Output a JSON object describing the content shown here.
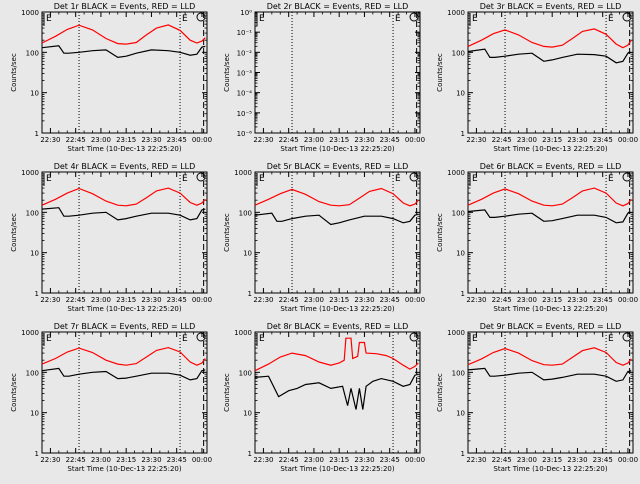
{
  "figure": {
    "background": "#e8e8e8"
  },
  "chart_data": [
    {
      "type": "line",
      "title": "Det 1r BLACK = Events, RED = LLD",
      "xlabel": "Start Time (10-Dec-13 22:25:20)",
      "ylabel": "Counts/sec",
      "x_ticks": [
        "22:30",
        "22:45",
        "23:00",
        "23:15",
        "23:30",
        "23:45",
        "00:00"
      ],
      "y_ticks": [
        "1",
        "10",
        "100",
        "1000"
      ],
      "yscale": "log",
      "ylim": [
        1,
        1000
      ],
      "xlim_minutes": [
        0,
        98
      ],
      "markers": {
        "dotted_lines_minutes": [
          22,
          82
        ],
        "dashed_line_minutes": 96,
        "letters": [
          "E",
          "E"
        ]
      },
      "series": [
        {
          "name": "Events",
          "color": "#000000",
          "x": [
            0,
            10,
            13,
            16,
            22,
            30,
            38,
            45,
            50,
            56,
            65,
            75,
            82,
            88,
            92,
            95,
            97
          ],
          "y": [
            130,
            145,
            95,
            95,
            100,
            110,
            115,
            75,
            80,
            95,
            115,
            110,
            100,
            85,
            90,
            135,
            140
          ]
        },
        {
          "name": "LLD",
          "color": "#ff0000",
          "x": [
            0,
            8,
            15,
            22,
            30,
            38,
            45,
            50,
            56,
            62,
            68,
            75,
            82,
            88,
            92,
            95,
            97
          ],
          "y": [
            170,
            250,
            370,
            470,
            360,
            220,
            165,
            160,
            175,
            270,
            400,
            480,
            350,
            200,
            170,
            190,
            230
          ]
        }
      ]
    },
    {
      "type": "line",
      "title": "Det 2r BLACK = Events, RED = LLD",
      "xlabel": "Start Time (10-Dec-13 22:25:20)",
      "ylabel": "Counts/sec",
      "x_ticks": [
        "22:30",
        "22:45",
        "23:00",
        "23:15",
        "23:30",
        "23:45",
        "00:00"
      ],
      "y_ticks": [
        "10⁻⁶",
        "10⁻⁵",
        "10⁻⁴",
        "10⁻³",
        "10⁻²",
        "10⁻¹",
        "10⁰"
      ],
      "yscale": "log",
      "ylim": [
        1e-06,
        1
      ],
      "xlim_minutes": [
        0,
        98
      ],
      "markers": {
        "dotted_lines_minutes": [
          22,
          82
        ],
        "dashed_line_minutes": 96,
        "letters": [
          "E",
          "E"
        ]
      },
      "series": []
    },
    {
      "type": "line",
      "title": "Det 3r BLACK = Events, RED = LLD",
      "xlabel": "Start Time (10-Dec-13 22:25:20)",
      "ylabel": "Counts/sec",
      "x_ticks": [
        "22:30",
        "22:45",
        "23:00",
        "23:15",
        "23:30",
        "23:45",
        "00:00"
      ],
      "y_ticks": [
        "1",
        "10",
        "100",
        "1000"
      ],
      "yscale": "log",
      "ylim": [
        1,
        1000
      ],
      "xlim_minutes": [
        0,
        98
      ],
      "markers": {
        "dotted_lines_minutes": [
          22,
          82
        ],
        "dashed_line_minutes": 96,
        "letters": [
          "E",
          "E"
        ]
      },
      "series": [
        {
          "name": "Events",
          "color": "#000000",
          "x": [
            0,
            10,
            13,
            16,
            22,
            30,
            38,
            45,
            50,
            56,
            65,
            75,
            82,
            88,
            92,
            95,
            97
          ],
          "y": [
            105,
            120,
            75,
            75,
            80,
            90,
            95,
            60,
            65,
            75,
            90,
            88,
            80,
            55,
            60,
            95,
            100
          ]
        },
        {
          "name": "LLD",
          "color": "#ff0000",
          "x": [
            0,
            8,
            15,
            22,
            30,
            38,
            45,
            50,
            56,
            62,
            68,
            75,
            82,
            88,
            92,
            95,
            97
          ],
          "y": [
            140,
            200,
            290,
            360,
            270,
            175,
            140,
            135,
            150,
            220,
            330,
            380,
            280,
            160,
            130,
            150,
            200
          ]
        }
      ]
    },
    {
      "type": "line",
      "title": "Det 4r BLACK = Events, RED = LLD",
      "xlabel": "Start Time (10-Dec-13 22:25:20)",
      "ylabel": "Counts/sec",
      "x_ticks": [
        "22:30",
        "22:45",
        "23:00",
        "23:15",
        "23:30",
        "23:45",
        "00:00"
      ],
      "y_ticks": [
        "1",
        "10",
        "100",
        "1000"
      ],
      "yscale": "log",
      "ylim": [
        1,
        1000
      ],
      "xlim_minutes": [
        0,
        98
      ],
      "markers": {
        "dotted_lines_minutes": [
          22,
          82
        ],
        "dashed_line_minutes": 96,
        "letters": [
          "E",
          "E"
        ]
      },
      "series": [
        {
          "name": "Events",
          "color": "#000000",
          "x": [
            0,
            10,
            13,
            16,
            22,
            30,
            38,
            45,
            50,
            56,
            65,
            75,
            82,
            88,
            92,
            95,
            97
          ],
          "y": [
            120,
            130,
            80,
            80,
            85,
            95,
            100,
            65,
            70,
            80,
            95,
            95,
            85,
            65,
            70,
            115,
            120
          ]
        },
        {
          "name": "LLD",
          "color": "#ff0000",
          "x": [
            0,
            8,
            15,
            22,
            30,
            38,
            45,
            50,
            56,
            62,
            68,
            75,
            82,
            88,
            92,
            95,
            97
          ],
          "y": [
            150,
            210,
            300,
            390,
            290,
            190,
            150,
            145,
            160,
            230,
            340,
            400,
            300,
            175,
            150,
            170,
            210
          ]
        }
      ]
    },
    {
      "type": "line",
      "title": "Det 5r BLACK = Events, RED = LLD",
      "xlabel": "Start Time (10-Dec-13 22:25:20)",
      "ylabel": "Counts/sec",
      "x_ticks": [
        "22:30",
        "22:45",
        "23:00",
        "23:15",
        "23:30",
        "23:45",
        "00:00"
      ],
      "y_ticks": [
        "1",
        "10",
        "100",
        "1000"
      ],
      "yscale": "log",
      "ylim": [
        1,
        1000
      ],
      "xlim_minutes": [
        0,
        98
      ],
      "markers": {
        "dotted_lines_minutes": [
          22,
          82
        ],
        "dashed_line_minutes": 96,
        "letters": [
          "E",
          "E"
        ]
      },
      "series": [
        {
          "name": "Events",
          "color": "#000000",
          "x": [
            0,
            10,
            13,
            16,
            22,
            30,
            38,
            45,
            50,
            56,
            65,
            75,
            82,
            88,
            92,
            95,
            97
          ],
          "y": [
            85,
            95,
            60,
            60,
            70,
            80,
            85,
            50,
            55,
            65,
            80,
            80,
            70,
            55,
            60,
            85,
            90
          ]
        },
        {
          "name": "LLD",
          "color": "#ff0000",
          "x": [
            0,
            8,
            15,
            22,
            30,
            38,
            45,
            50,
            56,
            62,
            68,
            75,
            82,
            88,
            92,
            95,
            97
          ],
          "y": [
            150,
            210,
            290,
            370,
            280,
            185,
            150,
            145,
            155,
            225,
            330,
            390,
            290,
            170,
            145,
            160,
            200
          ]
        }
      ]
    },
    {
      "type": "line",
      "title": "Det 6r BLACK = Events, RED = LLD",
      "xlabel": "Start Time (10-Dec-13 22:25:20)",
      "ylabel": "Counts/sec",
      "x_ticks": [
        "22:30",
        "22:45",
        "23:00",
        "23:15",
        "23:30",
        "23:45",
        "00:00"
      ],
      "y_ticks": [
        "1",
        "10",
        "100",
        "1000"
      ],
      "yscale": "log",
      "ylim": [
        1,
        1000
      ],
      "xlim_minutes": [
        0,
        98
      ],
      "markers": {
        "dotted_lines_minutes": [
          22,
          82
        ],
        "dashed_line_minutes": 96,
        "letters": [
          "E",
          "E"
        ]
      },
      "series": [
        {
          "name": "Events",
          "color": "#000000",
          "x": [
            0,
            10,
            13,
            16,
            22,
            30,
            38,
            45,
            50,
            56,
            65,
            75,
            82,
            88,
            92,
            95,
            97
          ],
          "y": [
            105,
            115,
            75,
            75,
            80,
            90,
            95,
            60,
            62,
            70,
            85,
            85,
            75,
            55,
            58,
            95,
            100
          ]
        },
        {
          "name": "LLD",
          "color": "#ff0000",
          "x": [
            0,
            8,
            15,
            22,
            30,
            38,
            45,
            50,
            56,
            62,
            68,
            75,
            82,
            88,
            92,
            95,
            97
          ],
          "y": [
            150,
            210,
            300,
            380,
            290,
            190,
            150,
            145,
            160,
            230,
            340,
            400,
            300,
            170,
            145,
            165,
            210
          ]
        }
      ]
    },
    {
      "type": "line",
      "title": "Det 7r BLACK = Events, RED = LLD",
      "xlabel": "Start Time (10-Dec-13 22:25:20)",
      "ylabel": "Counts/sec",
      "x_ticks": [
        "22:30",
        "22:45",
        "23:00",
        "23:15",
        "23:30",
        "23:45",
        "00:00"
      ],
      "y_ticks": [
        "1",
        "10",
        "100",
        "1000"
      ],
      "yscale": "log",
      "ylim": [
        1,
        1000
      ],
      "xlim_minutes": [
        0,
        98
      ],
      "markers": {
        "dotted_lines_minutes": [
          22,
          82
        ],
        "dashed_line_minutes": 96,
        "letters": [
          "E",
          "E"
        ]
      },
      "series": [
        {
          "name": "Events",
          "color": "#000000",
          "x": [
            0,
            10,
            13,
            16,
            22,
            30,
            38,
            45,
            50,
            56,
            65,
            75,
            82,
            88,
            92,
            95,
            97
          ],
          "y": [
            110,
            125,
            80,
            80,
            90,
            100,
            105,
            70,
            72,
            80,
            95,
            95,
            85,
            65,
            70,
            110,
            115
          ]
        },
        {
          "name": "LLD",
          "color": "#ff0000",
          "x": [
            0,
            8,
            15,
            22,
            30,
            38,
            45,
            50,
            56,
            62,
            68,
            75,
            82,
            88,
            92,
            95,
            97
          ],
          "y": [
            160,
            220,
            320,
            400,
            310,
            200,
            160,
            150,
            165,
            240,
            350,
            410,
            320,
            180,
            150,
            170,
            220
          ]
        }
      ]
    },
    {
      "type": "line",
      "title": "Det 8r BLACK = Events, RED = LLD",
      "xlabel": "Start Time (10-Dec-13 22:25:20)",
      "ylabel": "Counts/sec",
      "x_ticks": [
        "22:30",
        "22:45",
        "23:00",
        "23:15",
        "23:30",
        "23:45",
        "00:00"
      ],
      "y_ticks": [
        "1",
        "10",
        "100",
        "1000"
      ],
      "yscale": "log",
      "ylim": [
        1,
        1000
      ],
      "xlim_minutes": [
        0,
        98
      ],
      "markers": {
        "dotted_lines_minutes": [
          82
        ],
        "dashed_line_minutes": 96,
        "letters": [
          "E"
        ]
      },
      "series": [
        {
          "name": "Events",
          "color": "#000000",
          "x": [
            0,
            8,
            14,
            20,
            25,
            30,
            38,
            45,
            52,
            55,
            57,
            60,
            62,
            64,
            66,
            70,
            75,
            82,
            88,
            92,
            95,
            97
          ],
          "y": [
            75,
            80,
            25,
            35,
            40,
            50,
            55,
            40,
            45,
            15,
            40,
            12,
            40,
            12,
            45,
            60,
            70,
            60,
            45,
            50,
            85,
            90
          ]
        },
        {
          "name": "LLD",
          "color": "#ff0000",
          "x": [
            0,
            8,
            15,
            22,
            30,
            38,
            45,
            50,
            53,
            54,
            57,
            58,
            61,
            62,
            65,
            66,
            72,
            78,
            82,
            88,
            92,
            95,
            97
          ],
          "y": [
            110,
            160,
            240,
            300,
            260,
            180,
            150,
            170,
            200,
            700,
            700,
            220,
            250,
            550,
            550,
            300,
            290,
            260,
            220,
            150,
            120,
            140,
            170
          ]
        }
      ]
    },
    {
      "type": "line",
      "title": "Det 9r BLACK = Events, RED = LLD",
      "xlabel": "Start Time (10-Dec-13 22:25:20)",
      "ylabel": "Counts/sec",
      "x_ticks": [
        "22:30",
        "22:45",
        "23:00",
        "23:15",
        "23:30",
        "23:45",
        "00:00"
      ],
      "y_ticks": [
        "1",
        "10",
        "100",
        "1000"
      ],
      "yscale": "log",
      "ylim": [
        1,
        1000
      ],
      "xlim_minutes": [
        0,
        98
      ],
      "markers": {
        "dotted_lines_minutes": [
          22,
          82
        ],
        "dashed_line_minutes": 96,
        "letters": [
          "E",
          "E"
        ]
      },
      "series": [
        {
          "name": "Events",
          "color": "#000000",
          "x": [
            0,
            10,
            13,
            16,
            22,
            30,
            38,
            45,
            50,
            56,
            65,
            75,
            82,
            88,
            92,
            95,
            97
          ],
          "y": [
            115,
            125,
            80,
            80,
            85,
            95,
            100,
            65,
            68,
            75,
            90,
            90,
            80,
            60,
            65,
            105,
            110
          ]
        },
        {
          "name": "LLD",
          "color": "#ff0000",
          "x": [
            0,
            8,
            15,
            22,
            30,
            38,
            45,
            50,
            56,
            62,
            68,
            75,
            82,
            88,
            92,
            95,
            97
          ],
          "y": [
            155,
            215,
            310,
            390,
            300,
            195,
            155,
            150,
            160,
            235,
            345,
            405,
            310,
            175,
            150,
            170,
            215
          ]
        }
      ]
    }
  ]
}
